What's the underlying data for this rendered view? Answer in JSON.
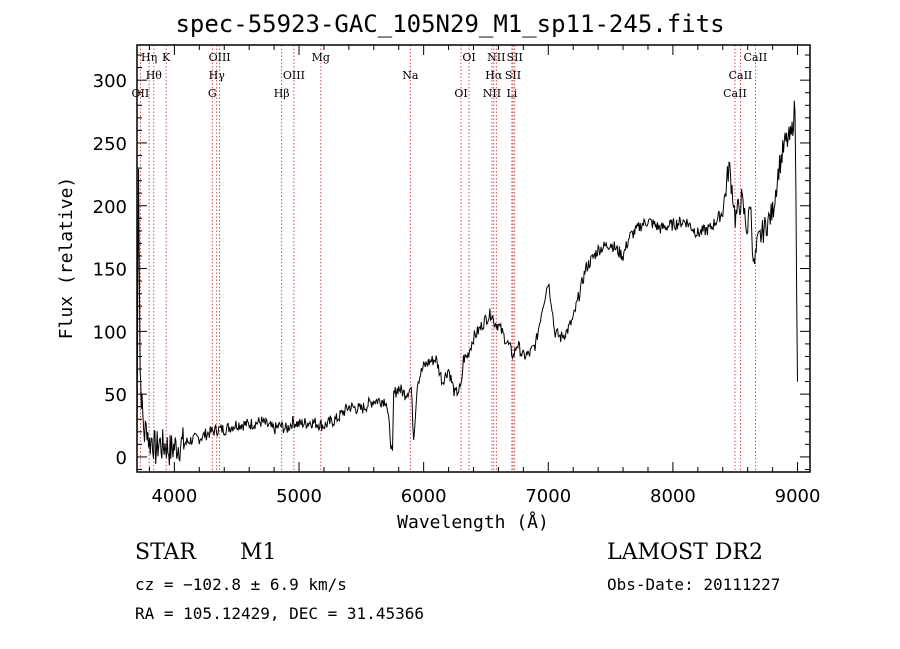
{
  "chart_data": {
    "type": "line",
    "title": "spec-55923-GAC_105N29_M1_sp11-245.fits",
    "xlabel": "Wavelength (Å)",
    "ylabel": "Flux (relative)",
    "xlim": [
      3700,
      9100
    ],
    "ylim": [
      -12,
      328
    ],
    "xticks": [
      4000,
      5000,
      6000,
      7000,
      8000,
      9000
    ],
    "yticks": [
      0,
      50,
      100,
      150,
      200,
      250,
      300
    ],
    "series": [
      {
        "x": [
          3700,
          3712,
          3725,
          3740,
          3760,
          3780,
          3800,
          3820,
          3850,
          3880,
          3900,
          3930,
          3960,
          4000,
          4050,
          4100,
          4150,
          4200,
          4250,
          4300,
          4350,
          4400,
          4450,
          4500,
          4600,
          4700,
          4800,
          4850,
          4900,
          4950,
          5000,
          5100,
          5200,
          5300,
          5400,
          5500,
          5600,
          5700,
          5750,
          5760,
          5800,
          5850,
          5900,
          5920,
          5950,
          6000,
          6050,
          6100,
          6150,
          6200,
          6250,
          6300,
          6320,
          6350,
          6400,
          6450,
          6500,
          6550,
          6560,
          6600,
          6650,
          6700,
          6720,
          6750,
          6800,
          6850,
          6900,
          6950,
          7000,
          7030,
          7050,
          7100,
          7150,
          7200,
          7300,
          7400,
          7500,
          7600,
          7650,
          7700,
          7750,
          7800,
          7900,
          8000,
          8100,
          8200,
          8300,
          8400,
          8450,
          8480,
          8500,
          8550,
          8600,
          8620,
          8650,
          8680,
          8700,
          8750,
          8800,
          8850,
          8900,
          8950,
          8980,
          9000
        ],
        "y": [
          0,
          240,
          70,
          40,
          18,
          25,
          10,
          15,
          5,
          12,
          8,
          10,
          5,
          8,
          10,
          12,
          14,
          15,
          18,
          20,
          22,
          22,
          24,
          26,
          26,
          28,
          22,
          25,
          22,
          28,
          26,
          28,
          25,
          30,
          40,
          38,
          45,
          45,
          0,
          50,
          55,
          50,
          55,
          15,
          60,
          72,
          76,
          78,
          60,
          70,
          50,
          55,
          78,
          80,
          95,
          102,
          110,
          115,
          108,
          105,
          95,
          85,
          80,
          90,
          80,
          82,
          90,
          118,
          140,
          120,
          100,
          95,
          100,
          110,
          150,
          165,
          170,
          160,
          175,
          180,
          185,
          188,
          182,
          185,
          188,
          178,
          182,
          195,
          232,
          210,
          190,
          205,
          180,
          205,
          150,
          170,
          175,
          185,
          195,
          230,
          250,
          255,
          280,
          60
        ]
      }
    ],
    "lines_top": [
      {
        "wl": 3797,
        "label": "Hη"
      },
      {
        "wl": 3835,
        "label": "Hθ"
      },
      {
        "wl": 3727,
        "label": "OII"
      },
      {
        "wl": 3934,
        "label": "K"
      },
      {
        "wl": 4340,
        "label": "Hγ"
      },
      {
        "wl": 4304,
        "label": "G"
      },
      {
        "wl": 4363,
        "label": "OIII"
      },
      {
        "wl": 4959,
        "label": "OIII"
      },
      {
        "wl": 4861,
        "label": "Hβ"
      },
      {
        "wl": 5175,
        "label": "Mg"
      },
      {
        "wl": 5893,
        "label": "Na"
      },
      {
        "wl": 6300,
        "label": "OI"
      },
      {
        "wl": 6364,
        "label": "OI"
      },
      {
        "wl": 6563,
        "label": "Hα"
      },
      {
        "wl": 6548,
        "label": "NII"
      },
      {
        "wl": 6583,
        "label": "NII"
      },
      {
        "wl": 6717,
        "label": "SII"
      },
      {
        "wl": 6708,
        "label": "Li"
      },
      {
        "wl": 6731,
        "label": "SII"
      },
      {
        "wl": 8542,
        "label": "CaII"
      },
      {
        "wl": 8498,
        "label": "CaII"
      },
      {
        "wl": 8662,
        "label": "CaII"
      }
    ]
  },
  "info": {
    "class": "STAR",
    "subclass": "M1",
    "survey": "LAMOST DR2",
    "cz": "cz = −102.8 ± 6.9 km/s",
    "obsdate": "Obs-Date: 20111227",
    "radec": "RA = 105.12429, DEC =  31.45366"
  },
  "colors": {
    "line": "#000000",
    "marker": "#cc2222"
  }
}
